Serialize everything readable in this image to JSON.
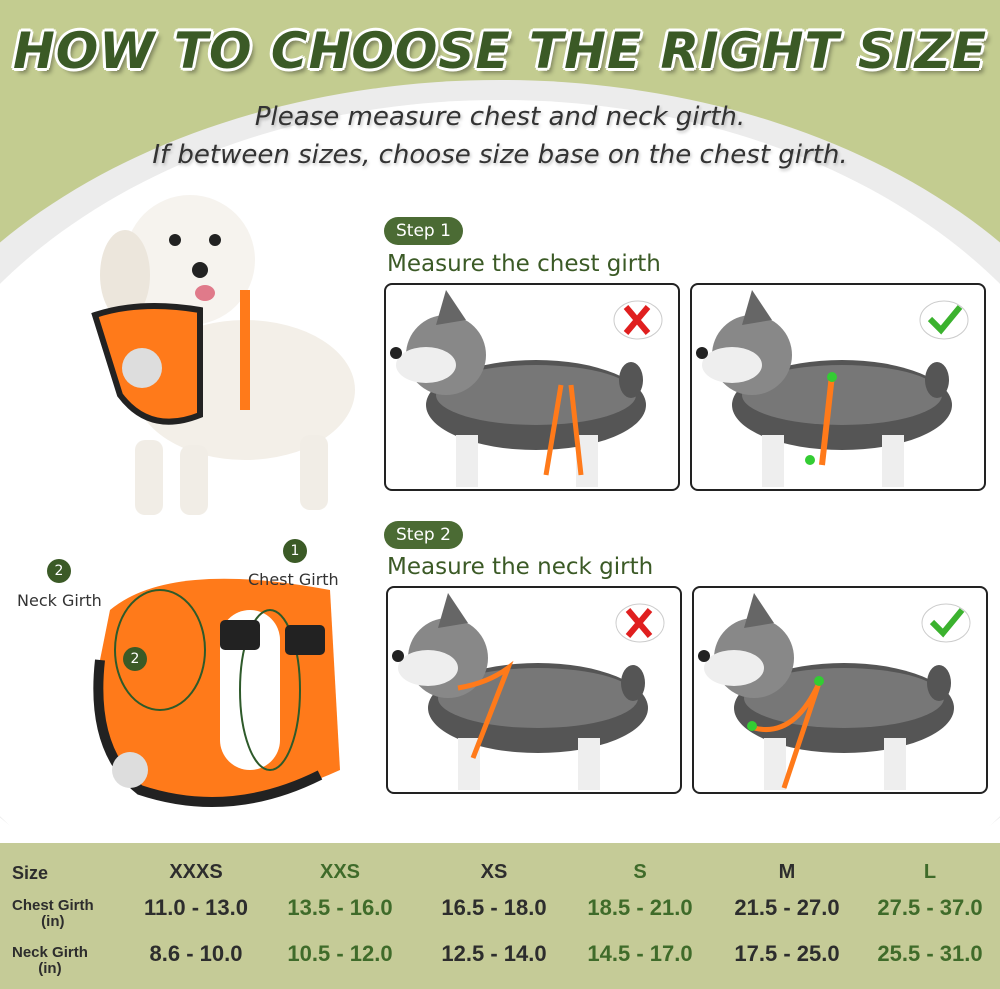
{
  "header": {
    "title": "HOW TO CHOOSE THE RIGHT SIZE",
    "subtitle_line1": "Please measure chest and neck girth.",
    "subtitle_line2": "If between sizes, choose size base on the chest girth."
  },
  "steps": [
    {
      "badge": "Step 1",
      "text": "Measure the chest girth",
      "wrong_icon": "red-x-icon",
      "right_icon": "green-check-icon"
    },
    {
      "badge": "Step 2",
      "text": "Measure the neck girth",
      "wrong_icon": "red-x-icon",
      "right_icon": "green-check-icon"
    }
  ],
  "harness_labels": {
    "chest_num": "1",
    "chest": "Chest Girth",
    "neck_num": "2",
    "neck": "Neck Girth",
    "neck_num_on_harness": "2"
  },
  "colors": {
    "header_green": "#c3cc90",
    "title_green": "#3b5a26",
    "harness_orange": "#ff7a1a",
    "table_bg": "#c5cb97"
  },
  "size_table": {
    "row_labels": [
      "Size",
      "Chest Girth\n(in)",
      "Neck Girth\n(in)"
    ],
    "sizes": [
      "XXXS",
      "XXS",
      "XS",
      "S",
      "M",
      "L"
    ],
    "chest": [
      "11.0 - 13.0",
      "13.5 - 16.0",
      "16.5 - 18.0",
      "18.5 - 21.0",
      "21.5 - 27.0",
      "27.5 - 37.0"
    ],
    "neck": [
      "8.6 - 10.0",
      "10.5 - 12.0",
      "12.5 - 14.0",
      "14.5 - 17.0",
      "17.5 - 25.0",
      "25.5 - 31.0"
    ]
  }
}
